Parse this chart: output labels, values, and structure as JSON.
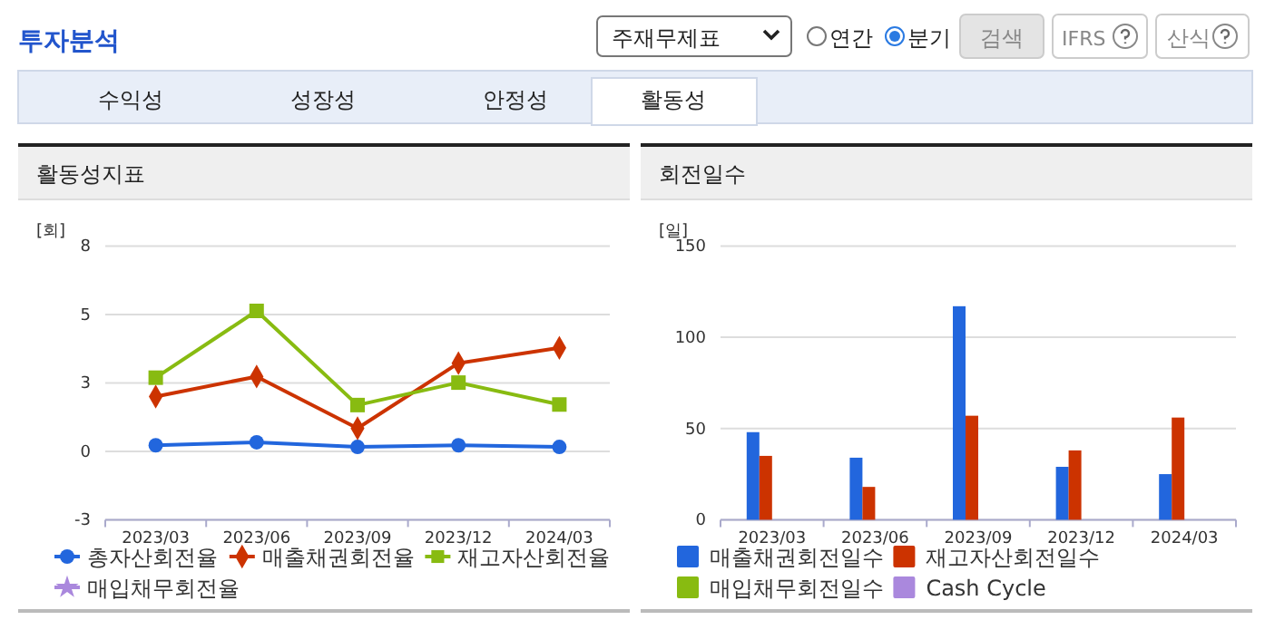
{
  "chart_data": [
    {
      "type": "other",
      "title": "투자분석",
      "annotations": [
        "주재무제표",
        "연간",
        "분기",
        "검색",
        "IFRS",
        "산식",
        "수익성",
        "성장성",
        "안정성",
        "활동성"
      ]
    },
    {
      "type": "line",
      "title": "활동성지표",
      "ylabel": "[회]",
      "categories": [
        "2023/03",
        "2023/06",
        "2023/09",
        "2023/12",
        "2024/03"
      ],
      "ylim": [
        -2.5,
        7.5
      ],
      "yticks": [
        {
          "value": -2.5,
          "label": "-3"
        },
        0,
        {
          "value": 2.5,
          "label": "3"
        },
        5,
        {
          "value": 7.5,
          "label": "8"
        }
      ],
      "grid": "y",
      "legend": "bottom",
      "series": [
        {
          "name": "총자산회전율",
          "color": "#2266dd",
          "marker": "circle",
          "values": [
            0.22,
            0.33,
            0.16,
            0.22,
            0.16
          ]
        },
        {
          "name": "매출채권회전율",
          "color": "#cc3300",
          "marker": "diamond",
          "values": [
            2.0,
            2.73,
            0.84,
            3.22,
            3.78
          ]
        },
        {
          "name": "재고자산회전율",
          "color": "#88bb11",
          "marker": "square",
          "values": [
            2.69,
            5.13,
            1.69,
            2.51,
            1.71
          ]
        },
        {
          "name": "매입채무회전율",
          "color": "#aa88dd",
          "marker": "star",
          "values": [
            null,
            null,
            null,
            null,
            null
          ]
        }
      ]
    },
    {
      "type": "bar",
      "title": "회전일수",
      "ylabel": "[일]",
      "categories": [
        "2023/03",
        "2023/06",
        "2023/09",
        "2023/12",
        "2024/03"
      ],
      "ylim": [
        0,
        150
      ],
      "yticks": [
        0,
        50,
        100,
        150
      ],
      "grid": "y",
      "legend": "bottom",
      "series": [
        {
          "name": "매출채권회전일수",
          "color": "#2266dd",
          "values": [
            48,
            34,
            117,
            29,
            25
          ]
        },
        {
          "name": "재고자산회전일수",
          "color": "#cc3300",
          "values": [
            35,
            18,
            57,
            38,
            56
          ]
        },
        {
          "name": "매입채무회전일수",
          "color": "#88bb11",
          "values": [
            null,
            null,
            null,
            null,
            null
          ]
        },
        {
          "name": "Cash Cycle",
          "color": "#aa88dd",
          "values": [
            null,
            null,
            null,
            null,
            null
          ]
        }
      ]
    }
  ]
}
